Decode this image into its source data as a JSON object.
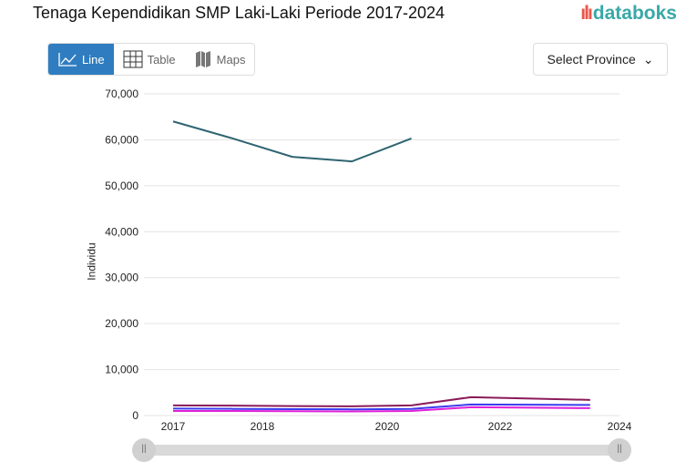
{
  "title": "Tenaga Kependidikan SMP Laki-Laki Periode 2017-2024",
  "logo": "databoks",
  "tabs": [
    {
      "label": "Line",
      "icon": "line-chart-icon"
    },
    {
      "label": "Table",
      "icon": "table-icon"
    },
    {
      "label": "Maps",
      "icon": "map-icon"
    }
  ],
  "province_select": {
    "label": "Select Province"
  },
  "chart_data": {
    "type": "line",
    "ylabel": "Individu",
    "ylim": [
      0,
      70000
    ],
    "yticks": [
      "0",
      "10,000",
      "20,000",
      "30,000",
      "40,000",
      "50,000",
      "60,000",
      "70,000"
    ],
    "xticks": [
      "2017",
      "2018",
      "2020",
      "2022",
      "2024"
    ],
    "x": [
      2017,
      2018,
      2019,
      2020,
      2021,
      2022,
      2023,
      2024
    ],
    "grid": true,
    "series": [
      {
        "color": "#2e6470",
        "values": [
          64000,
          60300,
          56300,
          55300,
          60300,
          null,
          null,
          null
        ]
      },
      {
        "color": "#8b1a5a",
        "values": [
          2200,
          2150,
          2050,
          2000,
          2200,
          4000,
          3700,
          3400
        ]
      },
      {
        "color": "#3b3bf0",
        "values": [
          1500,
          1450,
          1400,
          1350,
          1450,
          2400,
          2350,
          2300
        ]
      },
      {
        "color": "#e020d8",
        "values": [
          1000,
          1000,
          950,
          900,
          1000,
          1800,
          1700,
          1600
        ]
      }
    ]
  }
}
